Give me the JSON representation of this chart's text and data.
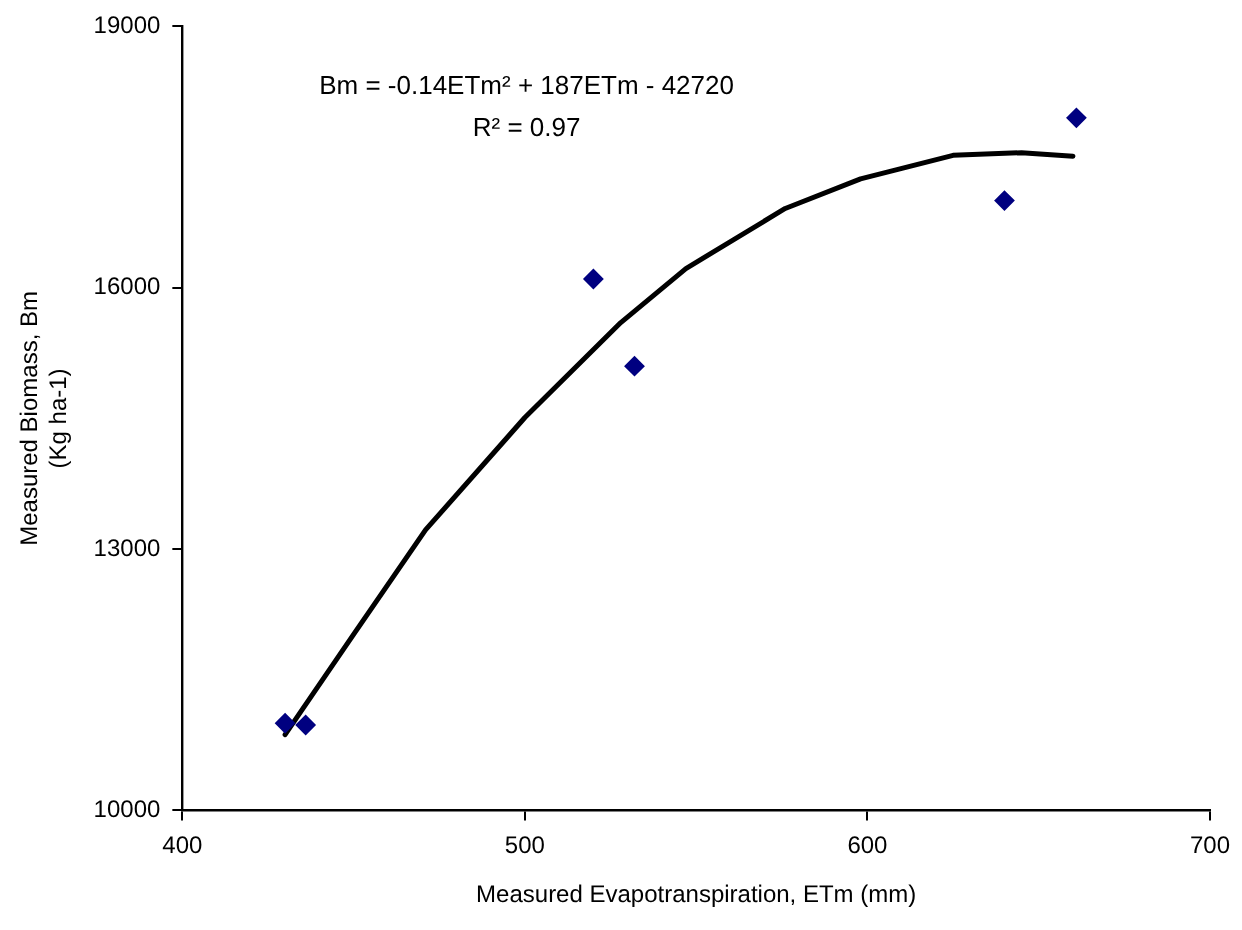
{
  "chart_data": {
    "type": "scatter",
    "xlabel": "Measured Evapotranspiration, ETm (mm)",
    "ylabel": "Measured Biomass, Bm\n(Kg ha-1)",
    "annotations": [
      "Bm = -0.14ETm² + 187ETm - 42720",
      "R² = 0.97"
    ],
    "xlim": [
      400,
      700
    ],
    "xticks": [
      400,
      500,
      600,
      700
    ],
    "ylim": [
      10000,
      19000
    ],
    "yticks": [
      10000,
      13000,
      16000,
      19000
    ],
    "grid": false,
    "legend": false,
    "series": [
      {
        "color": "#000080",
        "marker": "diamond",
        "x": [
          430,
          436,
          520,
          532,
          640,
          661
        ],
        "values": [
          11000,
          10980,
          16100,
          15100,
          17000,
          17950
        ]
      },
      {
        "type": "line",
        "color": "#000000",
        "marker": "none",
        "line_style": "solid",
        "x": [
          430,
          450,
          471,
          500,
          528,
          547,
          576,
          598,
          625,
          645,
          660
        ],
        "values": [
          10870,
          12020,
          13220,
          14510,
          15600,
          16220,
          16910,
          17250,
          17520,
          17550,
          17510
        ]
      }
    ]
  }
}
